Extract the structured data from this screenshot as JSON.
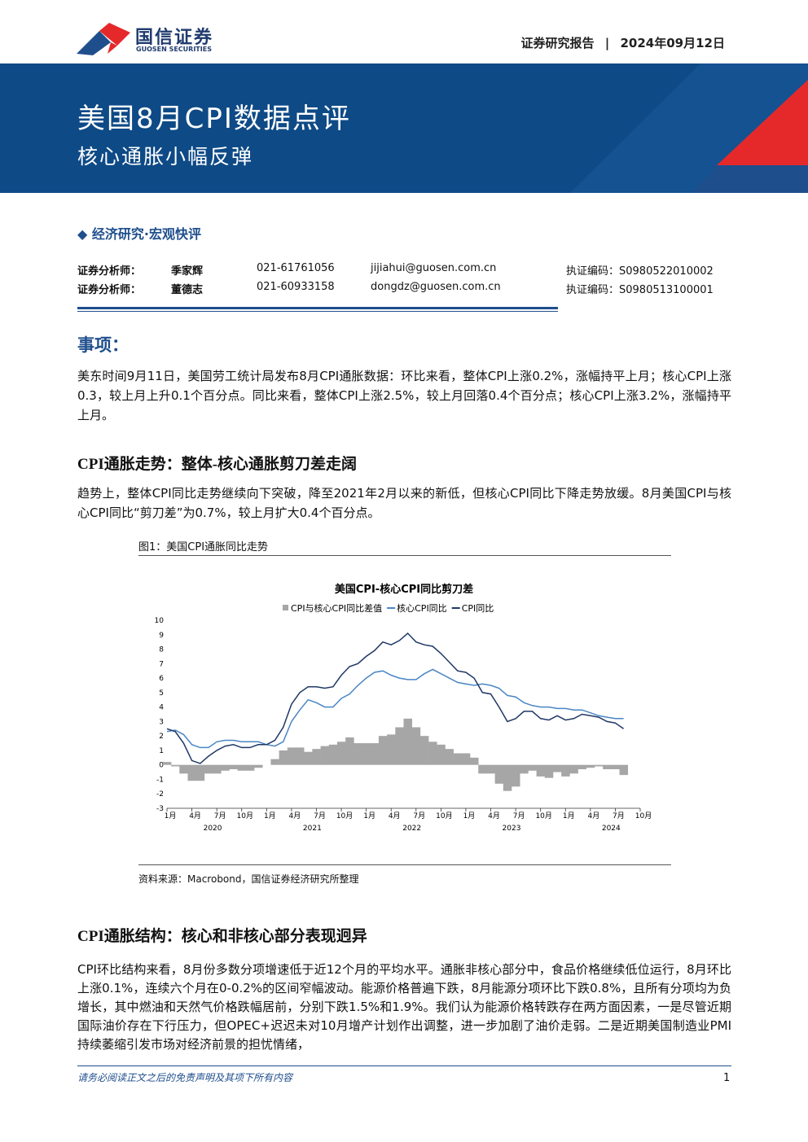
{
  "header": {
    "logo_cn": "国信证券",
    "logo_en": "GUOSEN SECURITIES",
    "report_type": "证券研究报告",
    "date": "2024年09月12日"
  },
  "banner": {
    "title": "美国8月CPI数据点评",
    "subtitle": "核心通胀小幅反弹"
  },
  "category": "经济研究·宏观快评",
  "analysts": [
    [
      "证券分析师：",
      "季家辉",
      "021-61761056",
      "jijiahui@guosen.com.cn",
      "执证编码：S0980522010002"
    ],
    [
      "证券分析师：",
      "董德志",
      "021-60933158",
      "dongdz@guosen.com.cn",
      "执证编码：S0980513100001"
    ]
  ],
  "sections": [
    {
      "heading": "事项：",
      "paragraphs": [
        "美东时间9月11日，美国劳工统计局发布8月CPI通胀数据：环比来看，整体CPI上涨0.2%，涨幅持平上月；核心CPI上涨0.3，较上月上升0.1个百分点。同比来看，整体CPI上涨2.5%，较上月回落0.4个百分点；核心CPI上涨3.2%，涨幅持平上月。"
      ]
    },
    {
      "heading": "CPI通胀走势：整体-核心通胀剪刀差走阔",
      "paragraphs": [
        "趋势上，整体CPI同比走势继续向下突破，降至2021年2月以来的新低，但核心CPI同比下降走势放缓。8月美国CPI与核心CPI同比“剪刀差”为0.7%，较上月扩大0.4个百分点。"
      ]
    },
    {
      "heading": "CPI通胀结构：核心和非核心部分表现迥异",
      "paragraphs": [
        "CPI环比结构来看，8月份多数分项增速低于近12个月的平均水平。通胀非核心部分中，食品价格继续低位运行，8月环比上涨0.1%，连续六个月在0-0.2%的区间窄幅波动。能源价格普遍下跌，8月能源分项环比下跌0.8%，且所有分项均为负增长，其中燃油和天然气价格跌幅居前，分别下跌1.5%和1.9%。我们认为能源价格转跌存在两方面因素，一是尽管近期国际油价存在下行压力，但OPEC+迟迟未对10月增产计划作出调整，进一步加剧了油价走弱。二是近期美国制造业PMI持续萎缩引发市场对经济前景的担忧情绪，"
      ]
    }
  ],
  "figure": {
    "caption": "图1：美国CPI通胀同比走势",
    "source": "资料来源：Macrobond，国信证券经济研究所整理"
  },
  "chart_data": {
    "type": "line",
    "title": "美国CPI-核心CPI同比剪刀差",
    "categories": [
      "1月",
      null,
      null,
      "4月",
      null,
      null,
      "7月",
      null,
      null,
      "10月",
      null,
      null,
      "1月",
      null,
      null,
      "4月",
      null,
      null,
      "7月",
      null,
      null,
      "10月",
      null,
      null,
      "1月",
      null,
      null,
      "4月",
      null,
      null,
      "7月",
      null,
      null,
      "10月",
      null,
      null,
      "1月",
      null,
      null,
      "4月",
      null,
      null,
      "7月",
      null,
      null,
      "10月",
      null,
      null,
      "1月",
      null,
      null,
      "4月",
      null,
      null,
      "7月",
      null,
      null,
      "10月"
    ],
    "year_labels": [
      "2020",
      "2021",
      "2022",
      "2023",
      "2024"
    ],
    "series": [
      {
        "name": "CPI与核心CPI同比差值",
        "kind": "area",
        "color": "#a6a6a6",
        "values": [
          0.2,
          -0.1,
          -0.6,
          -1.1,
          -1.1,
          -0.6,
          -0.6,
          -0.4,
          -0.3,
          -0.4,
          -0.4,
          -0.2,
          0,
          0.4,
          1.0,
          1.2,
          1.2,
          0.9,
          1.1,
          1.3,
          1.4,
          1.6,
          1.9,
          1.5,
          1.5,
          1.5,
          2.0,
          2.1,
          2.6,
          3.2,
          2.6,
          2.0,
          1.6,
          1.4,
          1.1,
          0.8,
          0.8,
          0.5,
          -0.6,
          -0.6,
          -1.3,
          -1.8,
          -1.5,
          -0.6,
          -0.4,
          -0.8,
          -0.9,
          -0.5,
          -0.8,
          -0.6,
          -0.3,
          -0.2,
          -0.1,
          -0.3,
          -0.3,
          -0.7,
          null,
          null
        ]
      },
      {
        "name": "核心CPI同比",
        "kind": "line",
        "color": "#4a86c5",
        "values": [
          2.3,
          2.4,
          2.1,
          1.4,
          1.2,
          1.2,
          1.6,
          1.7,
          1.7,
          1.6,
          1.6,
          1.6,
          1.4,
          1.3,
          1.6,
          3.0,
          3.8,
          4.5,
          4.3,
          4.0,
          4.0,
          4.6,
          4.9,
          5.5,
          6.0,
          6.4,
          6.5,
          6.2,
          6.0,
          5.9,
          5.9,
          6.3,
          6.6,
          6.3,
          6.0,
          5.7,
          5.6,
          5.5,
          5.6,
          5.5,
          5.3,
          4.8,
          4.7,
          4.3,
          4.1,
          4.0,
          4.0,
          3.9,
          3.9,
          3.8,
          3.8,
          3.6,
          3.4,
          3.3,
          3.2,
          3.2,
          null,
          null
        ]
      },
      {
        "name": "CPI同比",
        "kind": "line",
        "color": "#1f3864",
        "values": [
          2.5,
          2.3,
          1.5,
          0.3,
          0.1,
          0.6,
          1.0,
          1.3,
          1.4,
          1.2,
          1.2,
          1.4,
          1.4,
          1.7,
          2.6,
          4.2,
          5.0,
          5.4,
          5.4,
          5.3,
          5.4,
          6.2,
          6.8,
          7.0,
          7.5,
          7.9,
          8.5,
          8.3,
          8.6,
          9.1,
          8.5,
          8.3,
          8.2,
          7.7,
          7.1,
          6.5,
          6.4,
          6.0,
          5.0,
          4.9,
          4.0,
          3.0,
          3.2,
          3.7,
          3.7,
          3.2,
          3.1,
          3.4,
          3.1,
          3.2,
          3.5,
          3.4,
          3.3,
          3.0,
          2.9,
          2.5,
          null,
          null
        ]
      }
    ],
    "ylim": [
      -3,
      10
    ],
    "yticks": [
      -3,
      -2,
      -1,
      0,
      1,
      2,
      3,
      4,
      5,
      6,
      7,
      8,
      9,
      10
    ],
    "grid": false,
    "legend": "top"
  },
  "footer": {
    "disclaimer": "请务必阅读正文之后的免责声明及其项下所有内容",
    "page": "1"
  }
}
